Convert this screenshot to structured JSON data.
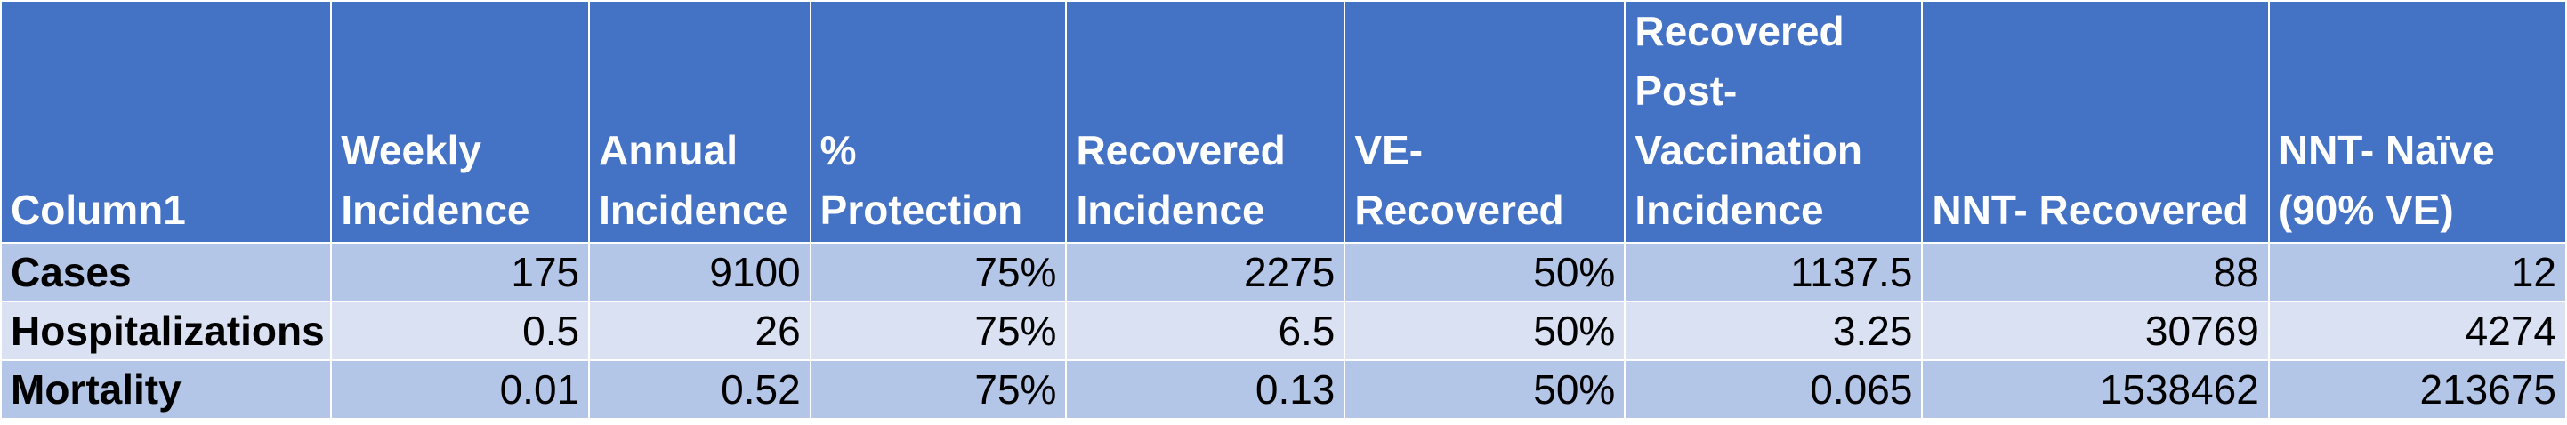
{
  "table": {
    "headers": [
      "Column1",
      "Weekly\nIncidence",
      "Annual\nIncidence",
      "%\nProtection",
      "Recovered\nIncidence",
      "VE-Recovered",
      "Recovered\nPost-\nVaccination\nIncidence",
      "NNT- Recovered",
      "NNT- Naïve\n(90% VE)"
    ],
    "rows": [
      [
        "Cases",
        "175",
        "9100",
        "75%",
        "2275",
        "50%",
        "1137.5",
        "88",
        "12"
      ],
      [
        "Hospitalizations",
        "0.5",
        "26",
        "75%",
        "6.5",
        "50%",
        "3.25",
        "30769",
        "4274"
      ],
      [
        "Mortality",
        "0.01",
        "0.52",
        "75%",
        "0.13",
        "50%",
        "0.065",
        "1538462",
        "213675"
      ]
    ]
  },
  "colors": {
    "header_bg": "#4472c4",
    "row_band_dark": "#b4c6e7",
    "row_band_light": "#d9e1f2",
    "header_text": "#ffffff"
  }
}
